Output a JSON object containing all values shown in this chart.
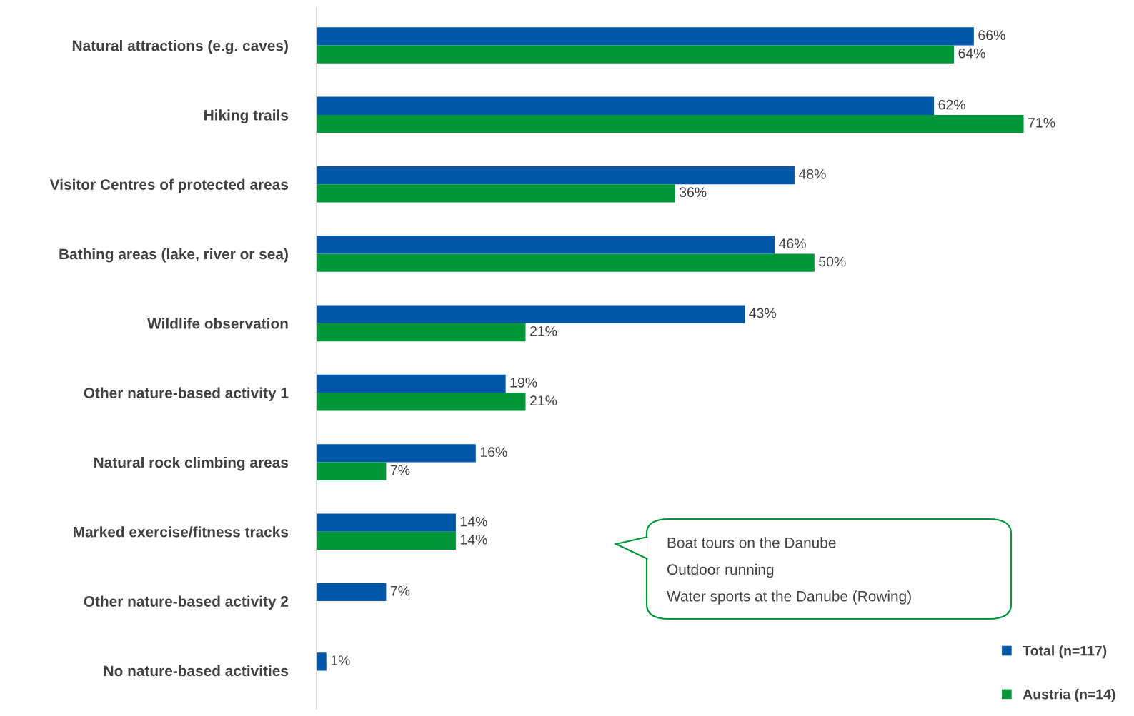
{
  "chart_data": {
    "type": "bar",
    "orientation": "horizontal",
    "categories": [
      "Natural attractions (e.g. caves)",
      "Hiking trails",
      "Visitor Centres of protected areas",
      "Bathing areas (lake, river or sea)",
      "Wildlife observation",
      "Other nature-based activity 1",
      "Natural rock climbing areas",
      "Marked exercise/fitness tracks",
      "Other nature-based activity 2",
      "No nature-based activities"
    ],
    "series": [
      {
        "name": "Total (n=117)",
        "color": "#0057a8",
        "values": [
          66,
          62,
          48,
          46,
          43,
          19,
          16,
          14,
          7,
          1
        ],
        "value_labels": [
          "66%",
          "62%",
          "48%",
          "46%",
          "43%",
          "19%",
          "16%",
          "14%",
          "7%",
          "1%"
        ]
      },
      {
        "name": "Austria (n=14)",
        "color": "#009639",
        "values": [
          64,
          71,
          36,
          50,
          21,
          21,
          7,
          14,
          null,
          null
        ],
        "value_labels": [
          "64%",
          "71%",
          "36%",
          "50%",
          "21%",
          "21%",
          "7%",
          "14%",
          null,
          null
        ]
      }
    ],
    "tick_labels": "y",
    "grid": false,
    "legend": "bottom right",
    "annotations": [
      "Boat tours on the Danube",
      "Outdoor running",
      "Water sports at the Danube (Rowing)"
    ]
  }
}
